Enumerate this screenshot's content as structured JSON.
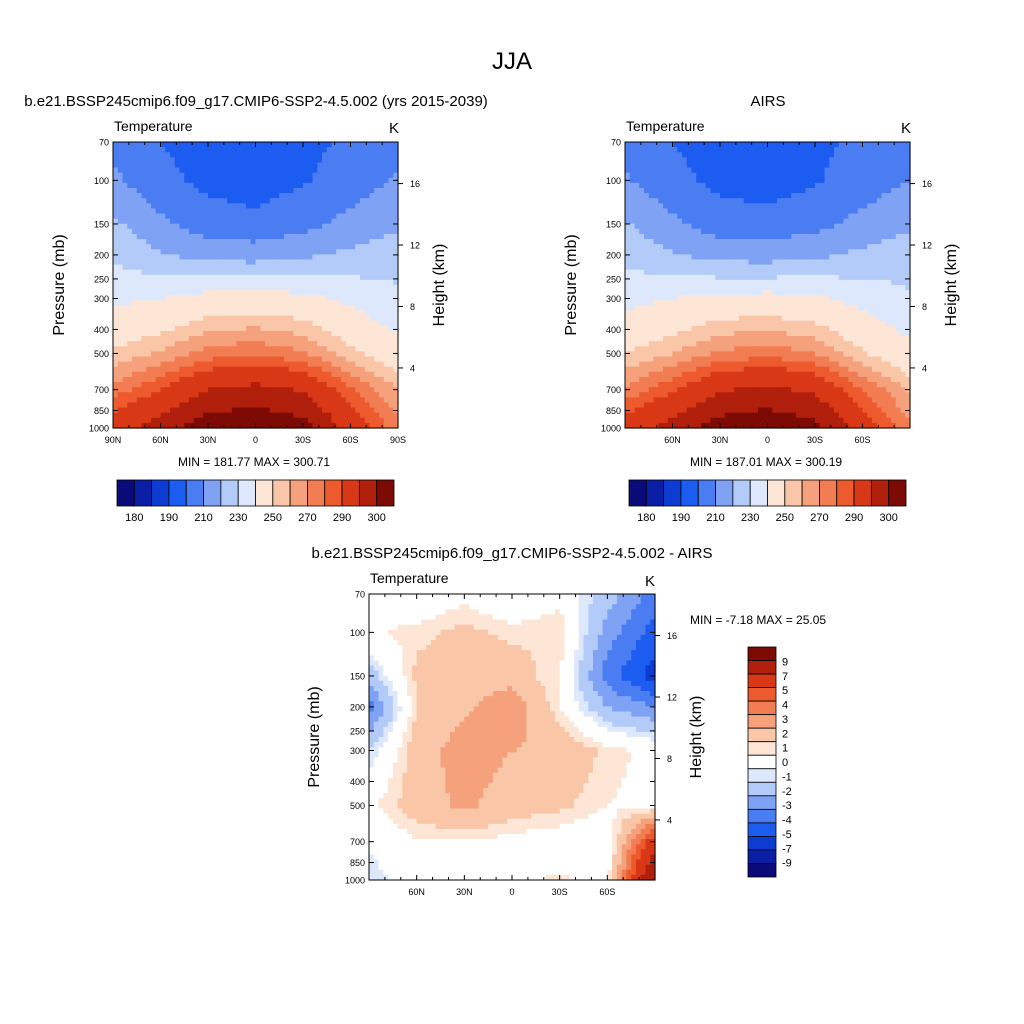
{
  "page": {
    "season": "JJA"
  },
  "colors": {
    "abs_palette": [
      "#0a0a78",
      "#0b1fa6",
      "#0c3cd2",
      "#1d5cf0",
      "#4a7cf2",
      "#7fa2f4",
      "#b3cbf8",
      "#dde8fc",
      "#fde6d6",
      "#f9c6a8",
      "#f5a27c",
      "#f27d52",
      "#ec5a2e",
      "#d93817",
      "#b01f0c",
      "#7d0a05"
    ],
    "diff_palette": [
      "#0a0a78",
      "#0b1fa6",
      "#0c3cd2",
      "#1d5cf0",
      "#4a7cf2",
      "#7fa2f4",
      "#b3cbf8",
      "#dde8fc",
      "#ffffff",
      "#fde6d6",
      "#f9c6a8",
      "#f5a27c",
      "#f27d52",
      "#ec5a2e",
      "#d93817",
      "#b01f0c",
      "#7d0a05"
    ]
  },
  "chart_data": [
    {
      "type": "heatmap",
      "title": "b.e21.BSSP245cmip6.f09_g17.CMIP6-SSP2-4.5.002 (yrs 2015-2039)",
      "left_string": "Temperature",
      "right_string": "K",
      "xlabel": "",
      "ylabel": "Pressure (mb)",
      "y2label": "Height (km)",
      "x_ticks": [
        "90N",
        "60N",
        "30N",
        "0",
        "30S",
        "60S",
        "90S"
      ],
      "x_tick_values": [
        90,
        60,
        30,
        0,
        -30,
        -60,
        -90
      ],
      "xlim": [
        90,
        -90
      ],
      "y_ticks": [
        "70",
        "100",
        "150",
        "200",
        "250",
        "300",
        "400",
        "500",
        "700",
        "850",
        "1000"
      ],
      "y_tick_values": [
        70,
        100,
        150,
        200,
        250,
        300,
        400,
        500,
        700,
        850,
        1000
      ],
      "ylim": [
        1000,
        70
      ],
      "y2_ticks": [
        "16",
        "12",
        "8",
        "4"
      ],
      "y2_tick_values": [
        16,
        12,
        8,
        4
      ],
      "stats": "MIN = 181.77  MAX = 300.71",
      "colorbar_labels": [
        "180",
        "190",
        "210",
        "230",
        "250",
        "270",
        "290",
        "300"
      ],
      "levels": [
        180,
        185,
        190,
        200,
        210,
        220,
        230,
        240,
        250,
        255,
        260,
        265,
        270,
        280,
        290,
        295,
        300
      ],
      "lat_grid": [
        90,
        60,
        30,
        0,
        -30,
        -60,
        -90
      ],
      "p_grid": [
        70,
        100,
        150,
        200,
        300,
        500,
        700,
        1000
      ],
      "values": [
        [
          207,
          200,
          196,
          194,
          197,
          202,
          208
        ],
        [
          212,
          203,
          197,
          195,
          199,
          205,
          211
        ],
        [
          222,
          212,
          205,
          203,
          207,
          213,
          218
        ],
        [
          228,
          221,
          216,
          215,
          218,
          222,
          226
        ],
        [
          238,
          240,
          244,
          245,
          243,
          238,
          232
        ],
        [
          251,
          256,
          262,
          264,
          261,
          252,
          244
        ],
        [
          262,
          270,
          280,
          283,
          279,
          266,
          255
        ],
        [
          276,
          285,
          296,
          299,
          294,
          276,
          262
        ]
      ]
    },
    {
      "type": "heatmap",
      "title": "AIRS",
      "left_string": "Temperature",
      "right_string": "K",
      "xlabel": "",
      "ylabel": "Pressure (mb)",
      "y2label": "Height (km)",
      "x_ticks": [
        "60N",
        "30N",
        "0",
        "30S",
        "60S"
      ],
      "x_tick_values": [
        60,
        30,
        0,
        -30,
        -60
      ],
      "xlim": [
        90,
        -90
      ],
      "y_ticks": [
        "70",
        "100",
        "150",
        "200",
        "250",
        "300",
        "400",
        "500",
        "700",
        "850",
        "1000"
      ],
      "y_tick_values": [
        70,
        100,
        150,
        200,
        250,
        300,
        400,
        500,
        700,
        850,
        1000
      ],
      "ylim": [
        1000,
        70
      ],
      "y2_ticks": [
        "16",
        "12",
        "8",
        "4"
      ],
      "y2_tick_values": [
        16,
        12,
        8,
        4
      ],
      "stats": "MIN = 187.01  MAX = 300.19",
      "colorbar_labels": [
        "180",
        "190",
        "210",
        "230",
        "250",
        "270",
        "290",
        "300"
      ],
      "levels": [
        180,
        185,
        190,
        200,
        210,
        220,
        230,
        240,
        250,
        255,
        260,
        265,
        270,
        280,
        290,
        295,
        300
      ],
      "lat_grid": [
        90,
        60,
        30,
        0,
        -30,
        -60,
        -90
      ],
      "p_grid": [
        70,
        100,
        150,
        200,
        300,
        500,
        700,
        1000
      ],
      "values": [
        [
          207,
          200,
          196,
          195,
          198,
          202,
          207
        ],
        [
          211,
          203,
          197,
          195,
          199,
          205,
          210
        ],
        [
          221,
          212,
          205,
          204,
          207,
          213,
          218
        ],
        [
          227,
          221,
          216,
          215,
          218,
          222,
          226
        ],
        [
          237,
          240,
          243,
          244,
          242,
          237,
          231
        ],
        [
          250,
          255,
          261,
          263,
          260,
          251,
          243
        ],
        [
          261,
          269,
          279,
          282,
          278,
          265,
          254
        ],
        [
          275,
          284,
          295,
          298,
          293,
          275,
          261
        ]
      ]
    },
    {
      "type": "heatmap",
      "title": "b.e21.BSSP245cmip6.f09_g17.CMIP6-SSP2-4.5.002 - AIRS",
      "left_string": "Temperature",
      "right_string": "K",
      "xlabel": "",
      "ylabel": "Pressure (mb)",
      "y2label": "Height (km)",
      "x_ticks": [
        "60N",
        "30N",
        "0",
        "30S",
        "60S"
      ],
      "x_tick_values": [
        60,
        30,
        0,
        -30,
        -60
      ],
      "xlim": [
        90,
        -90
      ],
      "y_ticks": [
        "70",
        "100",
        "150",
        "200",
        "250",
        "300",
        "400",
        "500",
        "700",
        "850",
        "1000"
      ],
      "y_tick_values": [
        70,
        100,
        150,
        200,
        250,
        300,
        400,
        500,
        700,
        850,
        1000
      ],
      "ylim": [
        1000,
        70
      ],
      "y2_ticks": [
        "16",
        "12",
        "8",
        "4"
      ],
      "y2_tick_values": [
        16,
        12,
        8,
        4
      ],
      "stats": "MIN =  -7.18  MAX =  25.05",
      "colorbar_labels": [
        "9",
        "7",
        "5",
        "4",
        "3",
        "2",
        "1",
        "0",
        "-1",
        "-2",
        "-3",
        "-4",
        "-5",
        "-7",
        "-9"
      ],
      "levels": [
        -9,
        -7,
        -5,
        -4,
        -3,
        -2,
        -1,
        0,
        1,
        2,
        3,
        4,
        5,
        7,
        9
      ],
      "lat_grid": [
        90,
        60,
        30,
        0,
        -30,
        -60,
        -90
      ],
      "p_grid": [
        70,
        100,
        150,
        200,
        300,
        500,
        700,
        1000
      ],
      "values": [
        [
          0.5,
          -0.5,
          0.3,
          -0.6,
          0.2,
          -1.5,
          -3.5
        ],
        [
          0.3,
          0.8,
          1.2,
          0.8,
          1.0,
          -2.5,
          -4.5
        ],
        [
          -1.5,
          1.2,
          1.5,
          1.5,
          0.5,
          -3.5,
          -5.5
        ],
        [
          -3.5,
          1.0,
          1.8,
          2.8,
          0.5,
          -2.0,
          -3.0
        ],
        [
          -1.0,
          1.5,
          2.5,
          2.0,
          1.8,
          0.8,
          0.2
        ],
        [
          0.3,
          1.5,
          2.2,
          1.5,
          1.2,
          0.5,
          0.2
        ],
        [
          -0.3,
          0.4,
          0.5,
          0.2,
          0.0,
          -0.4,
          6.0
        ],
        [
          -1.0,
          0.3,
          0.5,
          0.4,
          0.6,
          0.3,
          9.5
        ]
      ]
    }
  ]
}
